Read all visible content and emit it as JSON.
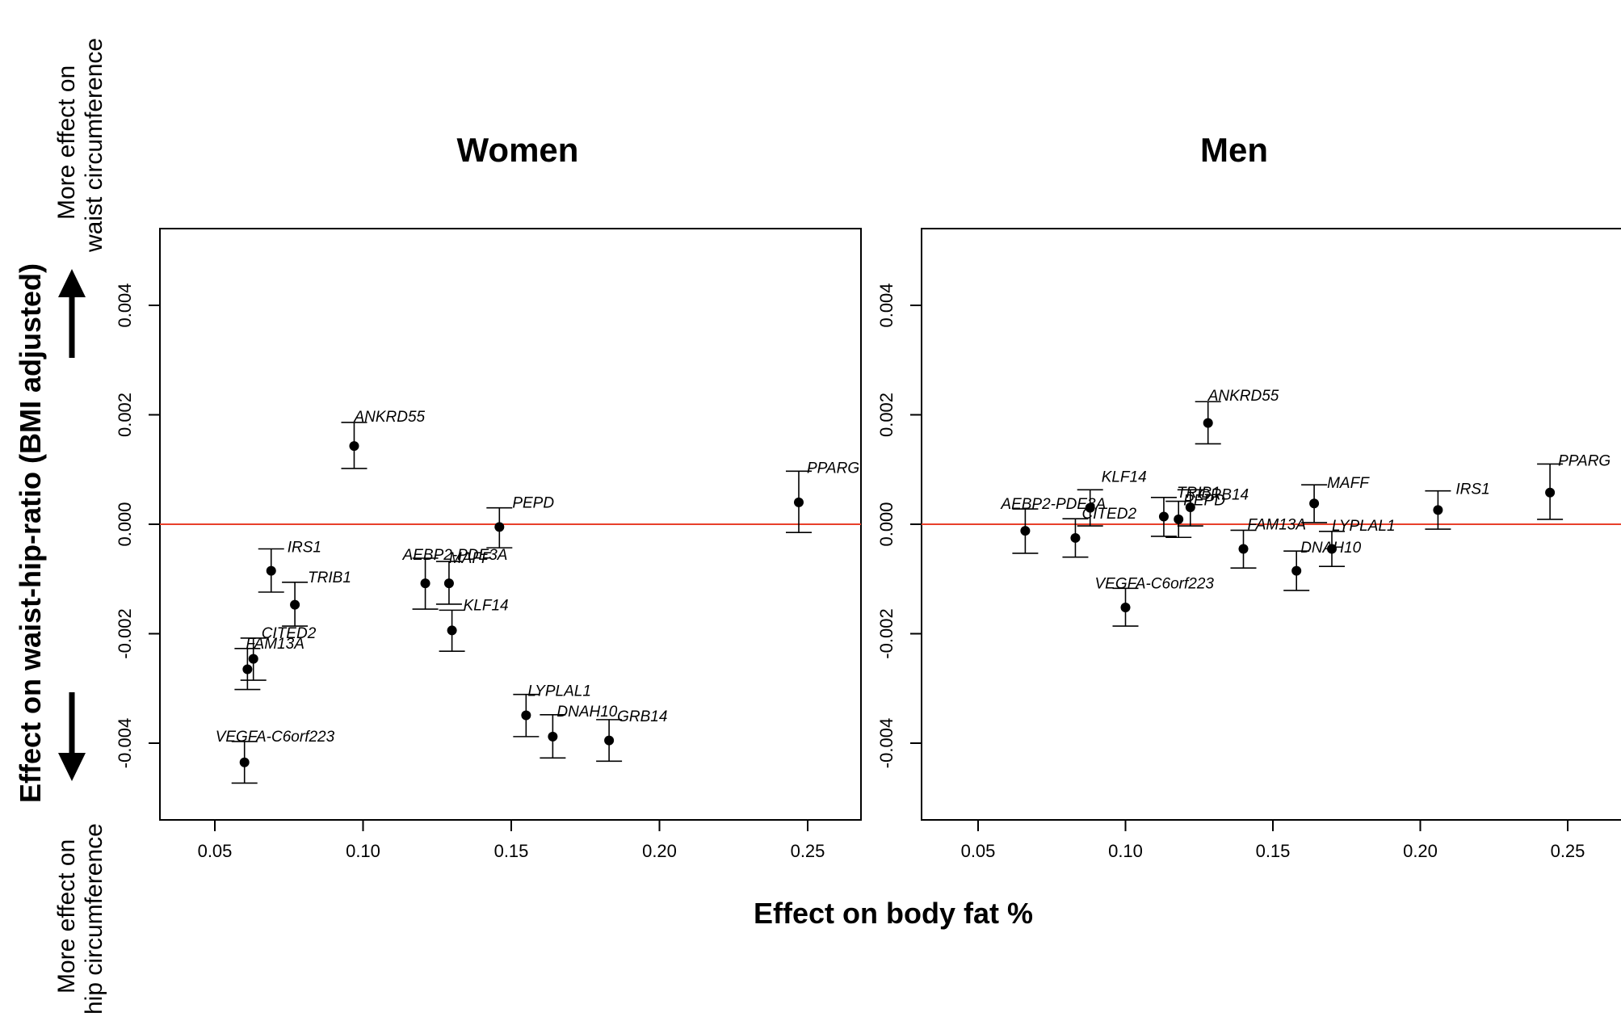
{
  "figure": {
    "xlabel": "Effect on body fat %",
    "ylabel": "Effect on waist-hip-ratio (BMI adjusted)",
    "top_note_line1": "More effect on",
    "top_note_line2": "waist circumference",
    "bottom_note_line1": "More effect on",
    "bottom_note_line2": "hip circumference",
    "reference_line_color": "#e8402a",
    "point_color": "#000000"
  },
  "chart_data": [
    {
      "type": "scatter",
      "title": "Women",
      "xlabel": "Effect on body fat %",
      "ylabel": "Effect on waist-hip-ratio (BMI adjusted)",
      "xlim": [
        0.032,
        0.27
      ],
      "ylim": [
        -0.0054,
        0.0054
      ],
      "xticks": [
        0.05,
        0.1,
        0.15,
        0.2,
        0.25
      ],
      "xtick_labels": [
        "0.05",
        "0.10",
        "0.15",
        "0.20",
        "0.25"
      ],
      "yticks": [
        -0.004,
        -0.002,
        0.0,
        0.002,
        0.004
      ],
      "ytick_labels": [
        "-0.004",
        "-0.002",
        "0.000",
        "0.002",
        "0.004"
      ],
      "reference_line_y": 0,
      "grid": false,
      "points": [
        {
          "label": "ANKRD55",
          "x": 0.097,
          "y": 0.00143,
          "lo": 0.00102,
          "hi": 0.00186
        },
        {
          "label": "PPARG",
          "x": 0.247,
          "y": 0.0004,
          "lo": -0.00015,
          "hi": 0.00097
        },
        {
          "label": "PEPD",
          "x": 0.146,
          "y": -5e-05,
          "lo": -0.00043,
          "hi": 0.0003
        },
        {
          "label": "IRS1",
          "x": 0.069,
          "y": -0.00085,
          "lo": -0.00124,
          "hi": -0.00045
        },
        {
          "label": "AEBP2-PDE3A",
          "x": 0.121,
          "y": -0.00108,
          "lo": -0.00155,
          "hi": -0.00062
        },
        {
          "label": "MAFF",
          "x": 0.129,
          "y": -0.00108,
          "lo": -0.00146,
          "hi": -0.00068
        },
        {
          "label": "TRIB1",
          "x": 0.077,
          "y": -0.00147,
          "lo": -0.00186,
          "hi": -0.00106
        },
        {
          "label": "KLF14",
          "x": 0.13,
          "y": -0.00194,
          "lo": -0.00232,
          "hi": -0.00157
        },
        {
          "label": "CITED2",
          "x": 0.063,
          "y": -0.00246,
          "lo": -0.00285,
          "hi": -0.00208
        },
        {
          "label": "FAM13A",
          "x": 0.061,
          "y": -0.00265,
          "lo": -0.00302,
          "hi": -0.00227
        },
        {
          "label": "LYPLAL1",
          "x": 0.155,
          "y": -0.00349,
          "lo": -0.00388,
          "hi": -0.00311
        },
        {
          "label": "DNAH10",
          "x": 0.164,
          "y": -0.00388,
          "lo": -0.00427,
          "hi": -0.00348
        },
        {
          "label": "GRB14",
          "x": 0.183,
          "y": -0.00395,
          "lo": -0.00433,
          "hi": -0.00357
        },
        {
          "label": "VEGFA-C6orf223",
          "x": 0.06,
          "y": -0.00435,
          "lo": -0.00473,
          "hi": -0.00397
        }
      ]
    },
    {
      "type": "scatter",
      "title": "Men",
      "xlabel": "Effect on body fat %",
      "ylabel": "Effect on waist-hip-ratio (BMI adjusted)",
      "xlim": [
        0.032,
        0.27
      ],
      "ylim": [
        -0.0054,
        0.0054
      ],
      "xticks": [
        0.05,
        0.1,
        0.15,
        0.2,
        0.25
      ],
      "xtick_labels": [
        "0.05",
        "0.10",
        "0.15",
        "0.20",
        "0.25"
      ],
      "yticks": [
        -0.004,
        -0.002,
        0.0,
        0.002,
        0.004
      ],
      "ytick_labels": [
        "-0.004",
        "-0.002",
        "0.000",
        "0.002",
        "0.004"
      ],
      "reference_line_y": 0,
      "grid": false,
      "points": [
        {
          "label": "ANKRD55",
          "x": 0.128,
          "y": 0.00185,
          "lo": 0.00147,
          "hi": 0.00224
        },
        {
          "label": "PPARG",
          "x": 0.244,
          "y": 0.00058,
          "lo": 9e-05,
          "hi": 0.0011
        },
        {
          "label": "MAFF",
          "x": 0.164,
          "y": 0.00038,
          "lo": 3e-05,
          "hi": 0.00072
        },
        {
          "label": "IRS1",
          "x": 0.206,
          "y": 0.00026,
          "lo": -9e-05,
          "hi": 0.00061
        },
        {
          "label": "GRB14",
          "x": 0.122,
          "y": 0.00031,
          "lo": -3e-05,
          "hi": 0.00063
        },
        {
          "label": "KLF14",
          "x": 0.088,
          "y": 0.0003,
          "lo": -3e-05,
          "hi": 0.00063
        },
        {
          "label": "TRIB1",
          "x": 0.113,
          "y": 0.00014,
          "lo": -0.00022,
          "hi": 0.00049
        },
        {
          "label": "PEPD",
          "x": 0.118,
          "y": 9e-05,
          "lo": -0.00024,
          "hi": 0.00042
        },
        {
          "label": "AEBP2-PDE3A",
          "x": 0.066,
          "y": -0.00012,
          "lo": -0.00053,
          "hi": 0.00028
        },
        {
          "label": "CITED2",
          "x": 0.083,
          "y": -0.00025,
          "lo": -0.0006,
          "hi": 0.0001
        },
        {
          "label": "FAM13A",
          "x": 0.14,
          "y": -0.00045,
          "lo": -0.0008,
          "hi": -0.00011
        },
        {
          "label": "LYPLAL1",
          "x": 0.17,
          "y": -0.00045,
          "lo": -0.00077,
          "hi": -0.00013
        },
        {
          "label": "DNAH10",
          "x": 0.158,
          "y": -0.00085,
          "lo": -0.00121,
          "hi": -0.00049
        },
        {
          "label": "VEGFA-C6orf223",
          "x": 0.1,
          "y": -0.00152,
          "lo": -0.00186,
          "hi": -0.00117
        }
      ]
    }
  ]
}
